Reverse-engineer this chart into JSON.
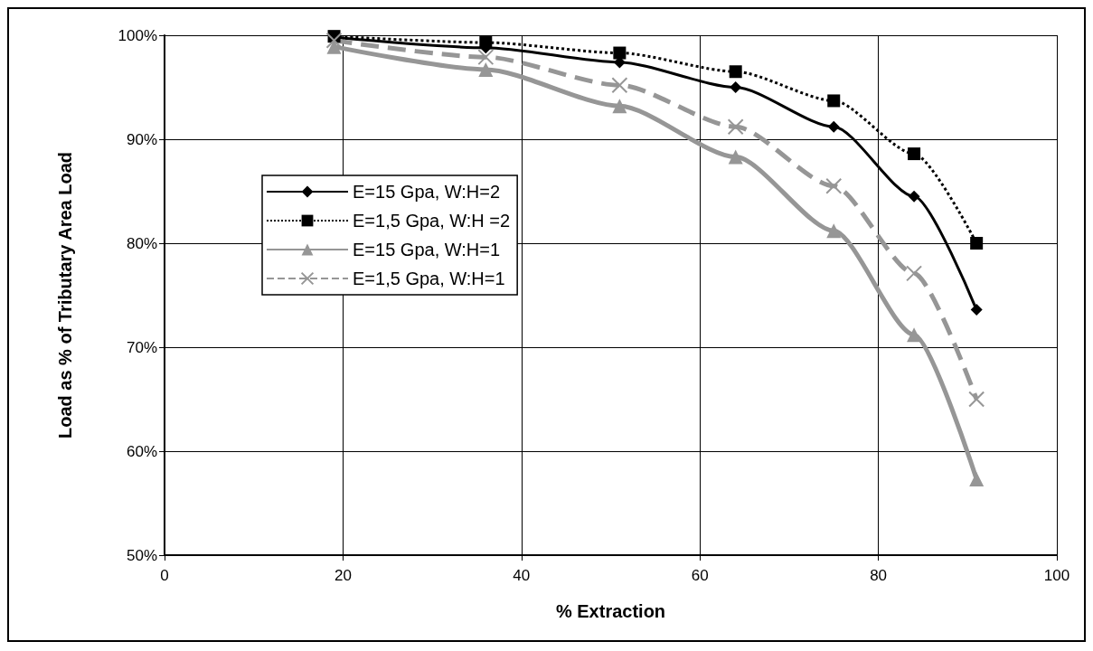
{
  "chart_data": {
    "type": "line",
    "xlabel": "% Extraction",
    "ylabel": "Load as % of Tributary Area Load",
    "x": [
      19,
      36,
      51,
      64,
      75,
      84,
      91
    ],
    "series": [
      {
        "name": "E=15 Gpa, W:H=2",
        "color": "#000000",
        "marker": "diamond",
        "line_style": "solid",
        "values": [
          99.8,
          98.8,
          97.4,
          95.0,
          91.2,
          84.5,
          73.6
        ]
      },
      {
        "name": "E=1,5 Gpa, W:H =2",
        "color": "#000000",
        "marker": "square",
        "line_style": "dotted",
        "values": [
          99.9,
          99.3,
          98.3,
          96.5,
          93.7,
          88.6,
          80.0
        ]
      },
      {
        "name": "E=15 Gpa, W:H=1",
        "color": "#969696",
        "marker": "triangle",
        "line_style": "solid",
        "values": [
          98.9,
          96.7,
          93.2,
          88.3,
          81.2,
          71.2,
          57.3
        ]
      },
      {
        "name": "E=1,5 Gpa, W:H=1",
        "color": "#969696",
        "marker": "cross",
        "line_style": "dashed",
        "values": [
          99.5,
          97.9,
          95.2,
          91.2,
          85.5,
          77.1,
          65.0
        ]
      }
    ],
    "xlim": [
      0,
      100
    ],
    "xticks": [
      0,
      20,
      40,
      60,
      80,
      100
    ],
    "ylim": [
      50,
      100
    ],
    "yticks": [
      {
        "value": 50,
        "label": "50%"
      },
      {
        "value": 60,
        "label": "60%"
      },
      {
        "value": 70,
        "label": "70%"
      },
      {
        "value": 80,
        "label": "80%"
      },
      {
        "value": 90,
        "label": "90%"
      },
      {
        "value": 100,
        "label": "100%"
      }
    ],
    "grid": true,
    "legend": "left"
  }
}
